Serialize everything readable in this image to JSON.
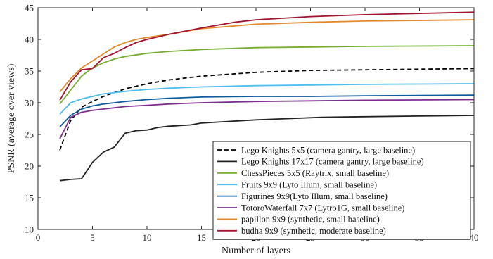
{
  "chart_data": {
    "type": "line",
    "xlabel": "Number of layers",
    "ylabel": "PSNR (average over views)",
    "xlim": [
      0,
      40
    ],
    "ylim": [
      10,
      45
    ],
    "xticks": [
      0,
      5,
      10,
      15,
      20,
      25,
      30,
      35,
      40
    ],
    "yticks": [
      10,
      15,
      20,
      25,
      30,
      35,
      40,
      45
    ],
    "grid": false,
    "legend_position": "bottom-right",
    "series": [
      {
        "name": "Lego Knights 5x5 (camera gantry, large baseline)",
        "color": "#000000",
        "dash": "dashed",
        "x": [
          2,
          3,
          4,
          5,
          6,
          7,
          8,
          10,
          12,
          15,
          20,
          25,
          30,
          40
        ],
        "y": [
          22.5,
          27.2,
          29.3,
          30.2,
          31.0,
          31.6,
          32.2,
          33.0,
          33.6,
          34.2,
          34.8,
          35.1,
          35.2,
          35.4
        ]
      },
      {
        "name": "Lego Knights 17x17 (camera gantry, large baseline)",
        "color": "#222222",
        "dash": "solid",
        "x": [
          2,
          3,
          4,
          5,
          6,
          7,
          8,
          9,
          10,
          11,
          12,
          13,
          14,
          15,
          17,
          20,
          23,
          26,
          30,
          35,
          40
        ],
        "y": [
          17.7,
          17.9,
          18.0,
          20.6,
          22.2,
          23.0,
          25.2,
          25.6,
          25.7,
          26.1,
          26.3,
          26.4,
          26.5,
          26.8,
          27.0,
          27.3,
          27.5,
          27.7,
          27.8,
          27.9,
          28.0
        ]
      },
      {
        "name": "ChessPieces 5x5 (Raytrix, small baseline)",
        "color": "#77AC30",
        "dash": "solid",
        "x": [
          2,
          3,
          4,
          5,
          6,
          7,
          8,
          10,
          12,
          15,
          20,
          25,
          30,
          40
        ],
        "y": [
          29.8,
          32.0,
          34.2,
          35.5,
          36.3,
          36.9,
          37.3,
          37.8,
          38.1,
          38.4,
          38.7,
          38.8,
          38.9,
          39.0
        ]
      },
      {
        "name": "Fruits 9x9 (Lyto Illum, small baseline)",
        "color": "#4DBEEE",
        "dash": "solid",
        "x": [
          2,
          3,
          4,
          5,
          6,
          7,
          8,
          10,
          12,
          15,
          20,
          25,
          30,
          40
        ],
        "y": [
          28.2,
          30.0,
          30.6,
          31.0,
          31.4,
          31.6,
          31.8,
          32.1,
          32.3,
          32.5,
          32.7,
          32.8,
          32.9,
          33.0
        ]
      },
      {
        "name": "Figurines 9x9(Lyto Illum, small baseline)",
        "color": "#0E5C9E",
        "dash": "solid",
        "x": [
          2,
          3,
          4,
          5,
          6,
          7,
          8,
          10,
          12,
          15,
          20,
          25,
          30,
          40
        ],
        "y": [
          26.2,
          28.0,
          29.0,
          29.5,
          29.8,
          30.0,
          30.2,
          30.5,
          30.7,
          30.9,
          31.0,
          31.0,
          31.1,
          31.2
        ]
      },
      {
        "name": "TotoroWaterfall 7x7 (Lytro1G, small baseline)",
        "color": "#7E2F8E",
        "dash": "solid",
        "x": [
          2,
          3,
          4,
          5,
          6,
          7,
          8,
          10,
          12,
          15,
          20,
          25,
          30,
          40
        ],
        "y": [
          24.3,
          27.7,
          28.5,
          28.8,
          29.0,
          29.2,
          29.4,
          29.6,
          29.8,
          30.0,
          30.2,
          30.3,
          30.4,
          30.5
        ]
      },
      {
        "name": "papillon 9x9 (synthetic, small baseline)",
        "color": "#E08A2E",
        "dash": "solid",
        "x": [
          2,
          3,
          4,
          5,
          6,
          7,
          8,
          9,
          10,
          12,
          15,
          20,
          25,
          30,
          40
        ],
        "y": [
          31.7,
          33.8,
          35.5,
          36.6,
          37.7,
          38.8,
          39.5,
          40.0,
          40.3,
          40.8,
          41.7,
          42.4,
          42.7,
          42.9,
          43.1
        ]
      },
      {
        "name": "budha 9x9 (synthetic, moderate baseline)",
        "color": "#A2142F",
        "dash": "solid",
        "x": [
          2,
          3,
          4,
          5,
          6,
          7,
          8,
          9,
          10,
          12,
          15,
          18,
          20,
          25,
          30,
          40
        ],
        "y": [
          30.4,
          33.3,
          35.2,
          35.4,
          37.1,
          37.8,
          38.7,
          39.5,
          40.0,
          40.8,
          41.8,
          42.7,
          43.1,
          43.6,
          43.9,
          44.3
        ]
      }
    ]
  }
}
